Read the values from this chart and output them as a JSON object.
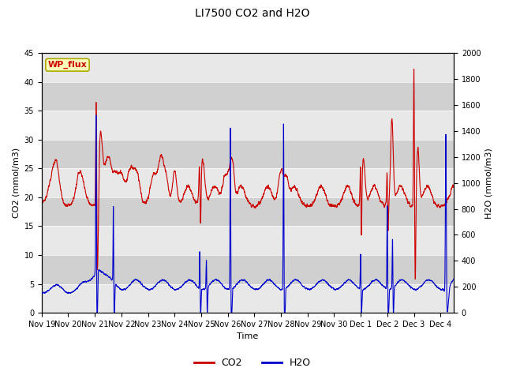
{
  "title": "LI7500 CO2 and H2O",
  "xlabel": "Time",
  "ylabel_left": "CO2 (mmol/m3)",
  "ylabel_right": "H2O (mmol/m3)",
  "watermark": "WP_flux",
  "co2_color": "#cc0000",
  "h2o_color": "#0000cc",
  "co2_ylim": [
    0,
    45
  ],
  "h2o_ylim": [
    0,
    2000
  ],
  "co2_yticks": [
    0,
    5,
    10,
    15,
    20,
    25,
    30,
    35,
    40,
    45
  ],
  "h2o_yticks": [
    0,
    200,
    400,
    600,
    800,
    1000,
    1200,
    1400,
    1600,
    1800,
    2000
  ],
  "bg_color": "#ffffff",
  "plot_bg_color": "#e0e0e0",
  "band_light": "#e8e8e8",
  "band_dark": "#d0d0d0",
  "legend_entries": [
    "CO2",
    "H2O"
  ],
  "tick_labels": [
    "Nov 19",
    "Nov 20",
    "Nov 21",
    "Nov 22",
    "Nov 23",
    "Nov 24",
    "Nov 25",
    "Nov 26",
    "Nov 27",
    "Nov 28",
    "Nov 29",
    "Nov 30",
    "Dec 1",
    "Dec 2",
    "Dec 3",
    "Dec 4"
  ],
  "grid_color": "#c0c0c0",
  "title_fontsize": 10,
  "axis_fontsize": 8,
  "tick_fontsize": 7
}
